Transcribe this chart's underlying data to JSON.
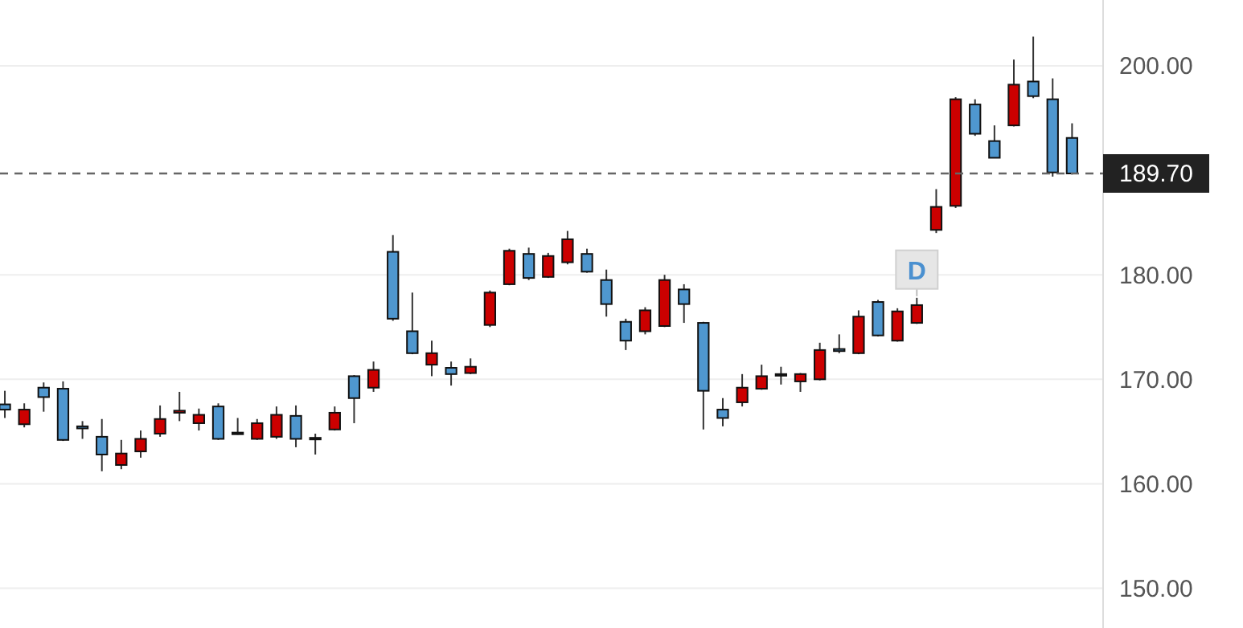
{
  "chart_data": {
    "type": "candlestick",
    "categories": [
      null,
      null,
      null,
      null,
      null,
      null,
      null,
      null,
      null,
      null,
      null,
      null,
      null,
      null,
      null,
      null,
      null,
      null,
      null,
      null,
      null,
      null,
      null,
      null,
      null,
      null,
      null,
      null,
      null,
      null,
      null,
      null,
      null,
      null,
      null,
      null,
      null,
      null,
      null,
      null,
      null,
      null,
      null,
      null,
      null,
      null,
      null,
      null,
      null,
      null,
      null,
      null,
      null,
      null,
      null,
      null
    ],
    "ohlc": [
      [
        167.6,
        168.9,
        166.3,
        167.1
      ],
      [
        165.7,
        167.7,
        165.4,
        167.1
      ],
      [
        169.2,
        169.7,
        166.9,
        168.3
      ],
      [
        169.1,
        169.8,
        164.1,
        164.2
      ],
      [
        165.5,
        166.0,
        164.3,
        165.3
      ],
      [
        164.5,
        166.2,
        161.2,
        162.8
      ],
      [
        161.8,
        164.2,
        161.4,
        162.9
      ],
      [
        163.1,
        165.1,
        162.5,
        164.3
      ],
      [
        164.8,
        167.5,
        164.5,
        166.2
      ],
      [
        166.8,
        168.8,
        166.0,
        167.0
      ],
      [
        165.8,
        167.2,
        165.1,
        166.6
      ],
      [
        167.4,
        167.7,
        164.2,
        164.3
      ],
      [
        164.9,
        166.3,
        164.7,
        164.8
      ],
      [
        164.3,
        166.2,
        164.2,
        165.8
      ],
      [
        164.5,
        167.4,
        164.3,
        166.6
      ],
      [
        166.5,
        167.5,
        163.5,
        164.3
      ],
      [
        164.4,
        164.8,
        162.8,
        164.3
      ],
      [
        165.2,
        167.4,
        165.1,
        166.8
      ],
      [
        170.3,
        170.4,
        165.8,
        168.2
      ],
      [
        169.2,
        171.7,
        168.8,
        170.9
      ],
      [
        182.2,
        183.8,
        175.6,
        175.8
      ],
      [
        174.6,
        178.3,
        172.4,
        172.5
      ],
      [
        171.4,
        173.7,
        170.3,
        172.5
      ],
      [
        171.1,
        171.7,
        169.4,
        170.5
      ],
      [
        170.6,
        172.0,
        170.5,
        171.2
      ],
      [
        175.2,
        178.5,
        175.0,
        178.3
      ],
      [
        179.1,
        182.5,
        179.0,
        182.3
      ],
      [
        182.0,
        182.6,
        179.5,
        179.7
      ],
      [
        179.8,
        182.1,
        179.7,
        181.8
      ],
      [
        181.2,
        184.2,
        181.0,
        183.4
      ],
      [
        182.0,
        182.5,
        180.2,
        180.3
      ],
      [
        179.5,
        180.5,
        176.0,
        177.2
      ],
      [
        175.5,
        175.8,
        172.8,
        173.7
      ],
      [
        174.6,
        176.9,
        174.3,
        176.6
      ],
      [
        175.1,
        180.0,
        175.0,
        179.5
      ],
      [
        178.6,
        179.1,
        175.4,
        177.2
      ],
      [
        175.4,
        175.5,
        165.2,
        168.9
      ],
      [
        167.1,
        168.2,
        165.5,
        166.3
      ],
      [
        167.8,
        170.5,
        167.4,
        169.2
      ],
      [
        169.1,
        171.4,
        169.0,
        170.3
      ],
      [
        170.4,
        171.2,
        169.5,
        170.5
      ],
      [
        169.8,
        170.6,
        168.8,
        170.5
      ],
      [
        170.0,
        173.5,
        169.9,
        172.8
      ],
      [
        172.9,
        174.3,
        172.5,
        172.7
      ],
      [
        172.5,
        176.6,
        172.4,
        176.0
      ],
      [
        177.4,
        177.6,
        174.1,
        174.2
      ],
      [
        173.7,
        176.8,
        173.6,
        176.5
      ],
      [
        175.4,
        177.8,
        175.3,
        177.1
      ],
      [
        184.3,
        188.2,
        184.0,
        186.5
      ],
      [
        186.6,
        197.0,
        186.4,
        196.8
      ],
      [
        196.3,
        196.8,
        193.3,
        193.5
      ],
      [
        192.8,
        194.3,
        191.2,
        191.2
      ],
      [
        194.3,
        200.6,
        194.2,
        198.2
      ],
      [
        198.5,
        202.8,
        196.9,
        197.1
      ],
      [
        196.8,
        198.8,
        189.4,
        189.8
      ],
      [
        193.1,
        194.5,
        189.6,
        189.7
      ]
    ],
    "colors": [
      "#4f97cf",
      "#cc0000",
      "#4f97cf",
      "#4f97cf",
      "#4f97cf",
      "#4f97cf",
      "#cc0000",
      "#cc0000",
      "#cc0000",
      "#cc0000",
      "#cc0000",
      "#4f97cf",
      "#4f97cf",
      "#cc0000",
      "#cc0000",
      "#4f97cf",
      "#4f97cf",
      "#cc0000",
      "#4f97cf",
      "#cc0000",
      "#4f97cf",
      "#4f97cf",
      "#cc0000",
      "#4f97cf",
      "#cc0000",
      "#cc0000",
      "#cc0000",
      "#4f97cf",
      "#cc0000",
      "#cc0000",
      "#4f97cf",
      "#4f97cf",
      "#4f97cf",
      "#cc0000",
      "#cc0000",
      "#4f97cf",
      "#4f97cf",
      "#4f97cf",
      "#cc0000",
      "#cc0000",
      "#cc0000",
      "#cc0000",
      "#cc0000",
      "#4f97cf",
      "#cc0000",
      "#4f97cf",
      "#cc0000",
      "#cc0000",
      "#cc0000",
      "#cc0000",
      "#4f97cf",
      "#4f97cf",
      "#cc0000",
      "#4f97cf",
      "#4f97cf",
      "#4f97cf"
    ],
    "ylim": [
      146.2,
      206.3
    ],
    "yticks": [
      {
        "value": 150,
        "label": "150.00"
      },
      {
        "value": 160,
        "label": "160.00"
      },
      {
        "value": 170,
        "label": "170.00"
      },
      {
        "value": 180,
        "label": "180.00"
      },
      {
        "value": 200,
        "label": "200.00"
      }
    ],
    "grid": "y",
    "tick_labels": "y",
    "ref_lines": [
      {
        "axis": "y",
        "value": 189.7,
        "label": "189.70",
        "color": "#666666",
        "line_style": "dashed"
      }
    ],
    "annotations": [
      {
        "text": "D",
        "y": 180.5
      }
    ]
  }
}
